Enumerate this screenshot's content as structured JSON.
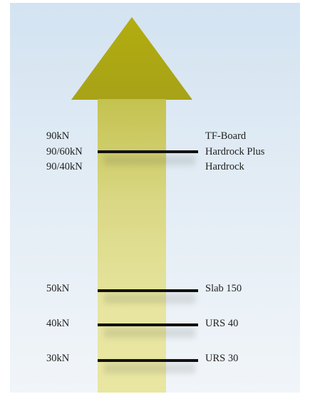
{
  "levels": [
    {
      "force": "90kN",
      "product": "TF-Board"
    },
    {
      "force": "90/60kN",
      "product": "Hardrock Plus"
    },
    {
      "force": "90/40kN",
      "product": "Hardrock"
    },
    {
      "force": "50kN",
      "product": "Slab 150"
    },
    {
      "force": "40kN",
      "product": "URS 40"
    },
    {
      "force": "30kN",
      "product": "URS 30"
    }
  ],
  "colors": {
    "arrow_head": "#b2ad0e",
    "arrow_shaft": "#dad885",
    "bar": "#111111",
    "background": "#d3e3f1"
  }
}
